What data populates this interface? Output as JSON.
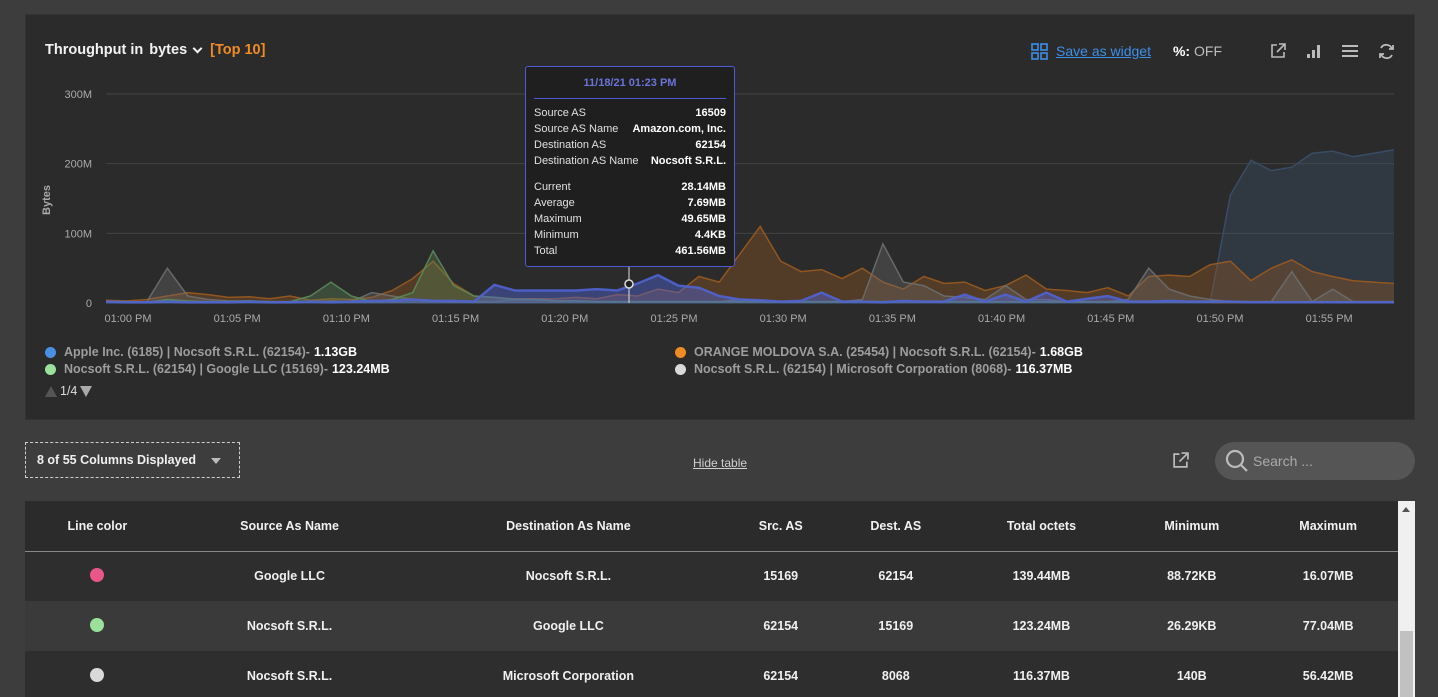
{
  "header": {
    "title": "Throughput in",
    "unit": "bytes",
    "top": "[Top 10]",
    "save_widget": "Save as widget",
    "pct_label": "%:",
    "pct_value": "OFF"
  },
  "chart_data": {
    "type": "area",
    "ylabel": "Bytes",
    "y_ticks": [
      "300M",
      "200M",
      "100M",
      "0"
    ],
    "ylim": [
      0,
      300000000
    ],
    "x_ticks": [
      "01:00 PM",
      "01:05 PM",
      "01:10 PM",
      "01:15 PM",
      "01:20 PM",
      "01:25 PM",
      "01:30 PM",
      "01:35 PM",
      "01:40 PM",
      "01:45 PM",
      "01:50 PM",
      "01:55 PM"
    ],
    "series": [
      {
        "color": "#4f63d2",
        "values": [
          2,
          1,
          1,
          2,
          1,
          1,
          1,
          2,
          1,
          1,
          2,
          1,
          2,
          3,
          3,
          5,
          3,
          3,
          2,
          26,
          18,
          18,
          18,
          18,
          20,
          18,
          28,
          40,
          25,
          22,
          10,
          5,
          4,
          2,
          3,
          15,
          2,
          2,
          1,
          3,
          2,
          2,
          12,
          2,
          12,
          2,
          15,
          2,
          6,
          10,
          2,
          2,
          3,
          2,
          2,
          2,
          1,
          1,
          1,
          1,
          1,
          1,
          1,
          1
        ]
      },
      {
        "color": "#9b5a1f",
        "values": [
          4,
          3,
          5,
          10,
          15,
          12,
          8,
          9,
          6,
          10,
          4,
          6,
          5,
          8,
          18,
          35,
          60,
          28,
          10,
          8,
          6,
          6,
          6,
          8,
          6,
          12,
          10,
          20,
          15,
          38,
          30,
          70,
          110,
          60,
          45,
          48,
          35,
          50,
          30,
          20,
          38,
          28,
          30,
          18,
          25,
          40,
          20,
          18,
          15,
          22,
          10,
          38,
          40,
          38,
          55,
          60,
          32,
          50,
          62,
          45,
          38,
          32,
          30,
          28
        ]
      },
      {
        "color": "#5a8a5a",
        "values": [
          2,
          2,
          1,
          5,
          3,
          2,
          2,
          3,
          2,
          2,
          10,
          30,
          10,
          2,
          5,
          15,
          75,
          25,
          10,
          8,
          5,
          5,
          3,
          3,
          2,
          2,
          2,
          2,
          2,
          2,
          2,
          2,
          2,
          2,
          2,
          2,
          2,
          2,
          2,
          2,
          2,
          2,
          2,
          2,
          2,
          2,
          2,
          2,
          2,
          2,
          2,
          2,
          2,
          2,
          2,
          2,
          2,
          2,
          2,
          2,
          2,
          2,
          2,
          2
        ]
      },
      {
        "color": "#6e6e6e",
        "values": [
          1,
          1,
          2,
          50,
          10,
          5,
          3,
          3,
          2,
          2,
          2,
          3,
          2,
          15,
          10,
          5,
          3,
          2,
          2,
          2,
          5,
          5,
          3,
          3,
          2,
          2,
          2,
          2,
          2,
          2,
          2,
          5,
          3,
          2,
          2,
          2,
          2,
          5,
          85,
          30,
          25,
          10,
          8,
          5,
          25,
          5,
          5,
          2,
          2,
          2,
          5,
          50,
          20,
          10,
          5,
          2,
          2,
          2,
          45,
          2,
          20,
          2,
          2,
          2
        ]
      },
      {
        "color": "#3a506b",
        "values": [
          0,
          0,
          0,
          0,
          0,
          0,
          0,
          0,
          0,
          0,
          0,
          0,
          0,
          0,
          0,
          0,
          0,
          0,
          0,
          0,
          0,
          0,
          0,
          0,
          0,
          0,
          0,
          0,
          0,
          0,
          0,
          0,
          0,
          0,
          0,
          0,
          0,
          0,
          0,
          0,
          0,
          0,
          0,
          0,
          0,
          0,
          0,
          0,
          0,
          0,
          0,
          0,
          0,
          0,
          0,
          155,
          205,
          190,
          195,
          215,
          218,
          210,
          215,
          220
        ]
      }
    ],
    "legend": [
      {
        "color": "#4a90e2",
        "name": "Apple Inc. (6185) | Nocsoft S.R.L. (62154)",
        "total": "1.13GB",
        "position": "left"
      },
      {
        "color": "#f08a24",
        "name": "ORANGE MOLDOVA S.A. (25454) | Nocsoft S.R.L. (62154)",
        "total": "1.68GB",
        "position": "right"
      },
      {
        "color": "#9be09b",
        "name": "Nocsoft S.R.L. (62154) | Google LLC (15169)",
        "total": "123.24MB",
        "position": "left"
      },
      {
        "color": "#d9d9d9",
        "name": "Nocsoft S.R.L. (62154) | Microsoft Corporation (8068)",
        "total": "116.37MB",
        "position": "right"
      }
    ]
  },
  "pager": {
    "text": "1/4"
  },
  "tooltip": {
    "date": "11/18/21 01:23 PM",
    "rows_a": [
      {
        "k": "Source AS",
        "v": "16509"
      },
      {
        "k": "Source AS Name",
        "v": "Amazon.com, Inc."
      },
      {
        "k": "Destination AS",
        "v": "62154"
      },
      {
        "k": "Destination AS Name",
        "v": "Nocsoft S.R.L."
      }
    ],
    "rows_b": [
      {
        "k": "Current",
        "v": "28.14MB"
      },
      {
        "k": "Average",
        "v": "7.69MB"
      },
      {
        "k": "Maximum",
        "v": "49.65MB"
      },
      {
        "k": "Minimum",
        "v": "4.4KB"
      },
      {
        "k": "Total",
        "v": "461.56MB"
      }
    ]
  },
  "controls": {
    "columns_label": "8 of 55 Columns Displayed",
    "hide_table": "Hide table",
    "search_placeholder": "Search ..."
  },
  "table": {
    "headers": [
      "Line color",
      "Source As Name",
      "Destination As Name",
      "Src. AS",
      "Dest. AS",
      "Total octets",
      "Minimum",
      "Maximum"
    ],
    "rows": [
      {
        "color": "#e8568a",
        "src_name": "Google LLC",
        "dst_name": "Nocsoft S.R.L.",
        "src_as": "15169",
        "dst_as": "62154",
        "total": "139.44MB",
        "min": "88.72KB",
        "max": "16.07MB"
      },
      {
        "color": "#9be09b",
        "src_name": "Nocsoft S.R.L.",
        "dst_name": "Google LLC",
        "src_as": "62154",
        "dst_as": "15169",
        "total": "123.24MB",
        "min": "26.29KB",
        "max": "77.04MB"
      },
      {
        "color": "#d9d9d9",
        "src_name": "Nocsoft S.R.L.",
        "dst_name": "Microsoft Corporation",
        "src_as": "62154",
        "dst_as": "8068",
        "total": "116.37MB",
        "min": "140B",
        "max": "56.42MB"
      }
    ]
  }
}
